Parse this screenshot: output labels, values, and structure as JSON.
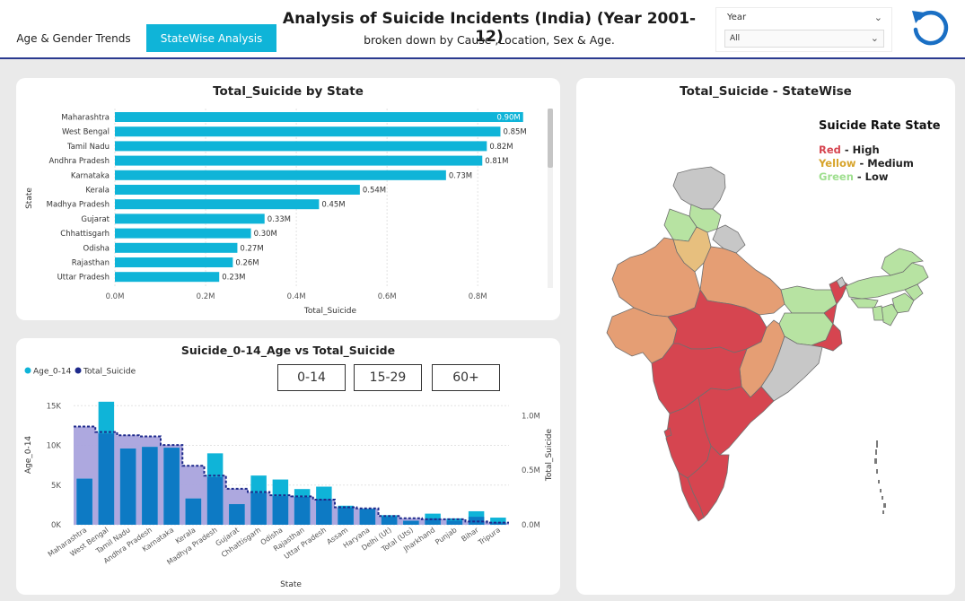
{
  "tabs": [
    {
      "label": "Age & Gender Trends",
      "active": false
    },
    {
      "label": "StateWise Analysis",
      "active": true
    }
  ],
  "header": {
    "title": "Analysis of Suicide Incidents (India) (Year 2001-12)",
    "subtitle": "broken down by Cause ,Location, Sex & Age."
  },
  "slicer": {
    "label": "Year",
    "value": "All"
  },
  "colors": {
    "accent": "#0fb4d8",
    "dark_series": "#1e2a8c",
    "mid_bar": "#0d7ac4",
    "high": "#d64550",
    "medium": "#d7a42b",
    "low": "#9fdf8f"
  },
  "bar_chart": {
    "title": "Total_Suicide by State",
    "chart_data": {
      "type": "bar",
      "orientation": "horizontal",
      "categories": [
        "Maharashtra",
        "West Bengal",
        "Tamil Nadu",
        "Andhra Pradesh",
        "Karnataka",
        "Kerala",
        "Madhya Pradesh",
        "Gujarat",
        "Chhattisgarh",
        "Odisha",
        "Rajasthan",
        "Uttar Pradesh"
      ],
      "values": [
        0.9,
        0.85,
        0.82,
        0.81,
        0.73,
        0.54,
        0.45,
        0.33,
        0.3,
        0.27,
        0.26,
        0.23
      ],
      "labels": [
        "0.90M",
        "0.85M",
        "0.82M",
        "0.81M",
        "0.73M",
        "0.54M",
        "0.45M",
        "0.33M",
        "0.30M",
        "0.27M",
        "0.26M",
        "0.23M"
      ],
      "xlabel": "Total_Suicide",
      "ylabel": "State",
      "xlim": [
        0,
        0.95
      ],
      "xticks": [
        "0.0M",
        "0.2M",
        "0.4M",
        "0.6M",
        "0.8M"
      ],
      "grid": true
    }
  },
  "combo_chart": {
    "title": "Suicide_0-14_Age vs Total_Suicide",
    "buttons": [
      "0-14",
      "15-29",
      "60+"
    ],
    "chart_data": {
      "type": "bar",
      "categories": [
        "Maharashtra",
        "West Bengal",
        "Tamil Nadu",
        "Andhra Pradesh",
        "Karnataka",
        "Kerala",
        "Madhya Pradesh",
        "Gujarat",
        "Chhattisgarh",
        "Odisha",
        "Rajasthan",
        "Uttar Pradesh",
        "Assam",
        "Haryana",
        "Delhi (Ut)",
        "Total (Uts)",
        "Jharkhand",
        "Punjab",
        "Bihar",
        "Tripura"
      ],
      "series": [
        {
          "name": "Age_0-14",
          "values": [
            5800,
            15500,
            9600,
            9800,
            9700,
            3300,
            9000,
            2600,
            6200,
            5700,
            4500,
            4800,
            2400,
            2000,
            1200,
            500,
            1400,
            800,
            1700,
            900
          ]
        },
        {
          "name": "Total_Suicide",
          "values": [
            0.9,
            0.85,
            0.82,
            0.81,
            0.73,
            0.54,
            0.45,
            0.33,
            0.3,
            0.27,
            0.26,
            0.23,
            0.16,
            0.15,
            0.08,
            0.06,
            0.05,
            0.05,
            0.03,
            0.02
          ]
        }
      ],
      "overlap": [
        5800,
        11500,
        9600,
        9800,
        9700,
        3300,
        6000,
        2600,
        4000,
        3600,
        3500,
        3200,
        2200,
        2000,
        1000,
        500,
        800,
        500,
        1000,
        300
      ],
      "xlabel": "State",
      "ylabel": "Age_0-14",
      "y2label": "Total_Suicide",
      "ylim": [
        0,
        16500
      ],
      "y2lim": [
        0,
        1.2
      ],
      "yticks": [
        "0K",
        "5K",
        "10K",
        "15K"
      ],
      "y2ticks": [
        "0.0M",
        "0.5M",
        "1.0M"
      ],
      "legend": "top-left"
    }
  },
  "map": {
    "title": "Total_Suicide - StateWise",
    "legend_title": "Suicide Rate State",
    "legend": [
      {
        "color_word": "Red",
        "rest": " - High",
        "color": "#d64550"
      },
      {
        "color_word": "Yellow",
        "rest": " - Medium",
        "color": "#d7a42b"
      },
      {
        "color_word": "Green",
        "rest": " - Low",
        "color": "#9fdf8f"
      }
    ]
  }
}
